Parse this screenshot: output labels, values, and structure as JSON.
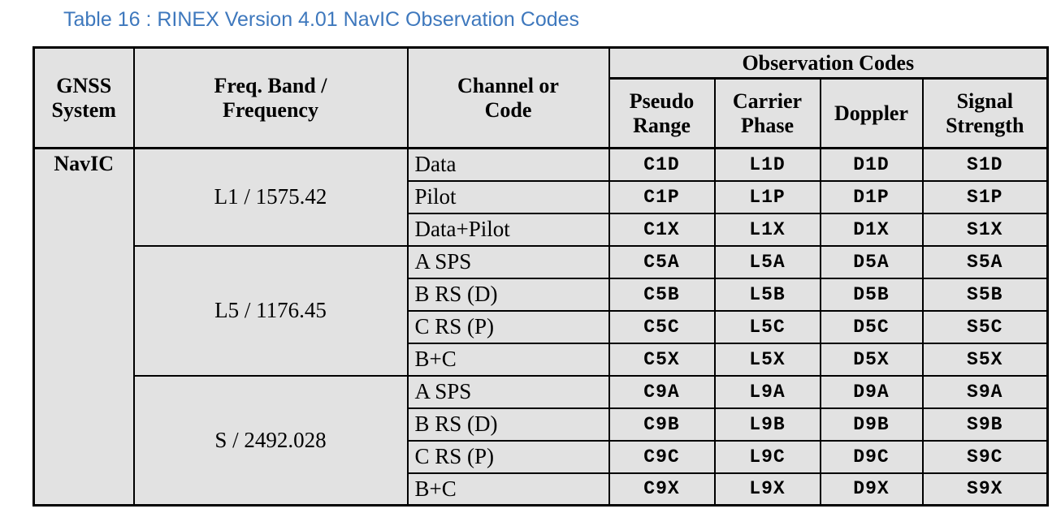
{
  "title": "Table 16 : RINEX Version 4.01 NavIC Observation Codes",
  "colors": {
    "title_text": "#3e78bd",
    "cell_background": "#e2e2e2",
    "border": "#000000",
    "page_background": "#ffffff"
  },
  "table": {
    "headers": {
      "gnss_system": "GNSS\nSystem",
      "freq_band": "Freq. Band /\nFrequency",
      "channel": "Channel or\nCode",
      "observation_codes": "Observation Codes",
      "pseudo_range": "Pseudo\nRange",
      "carrier_phase": "Carrier\nPhase",
      "doppler": "Doppler",
      "signal_strength": "Signal\nStrength"
    },
    "gnss_system": "NavIC",
    "bands": [
      {
        "freq": "L1 / 1575.42",
        "rows": [
          {
            "channel": "Data",
            "codes": [
              "C1D",
              "L1D",
              "D1D",
              "S1D"
            ]
          },
          {
            "channel": "Pilot",
            "codes": [
              "C1P",
              "L1P",
              "D1P",
              "S1P"
            ]
          },
          {
            "channel": "Data+Pilot",
            "codes": [
              "C1X",
              "L1X",
              "D1X",
              "S1X"
            ]
          }
        ]
      },
      {
        "freq": "L5 / 1176.45",
        "rows": [
          {
            "channel": "A SPS",
            "codes": [
              "C5A",
              "L5A",
              "D5A",
              "S5A"
            ]
          },
          {
            "channel": "B RS (D)",
            "codes": [
              "C5B",
              "L5B",
              "D5B",
              "S5B"
            ]
          },
          {
            "channel": "C RS (P)",
            "codes": [
              "C5C",
              "L5C",
              "D5C",
              "S5C"
            ]
          },
          {
            "channel": "B+C",
            "codes": [
              "C5X",
              "L5X",
              "D5X",
              "S5X"
            ]
          }
        ]
      },
      {
        "freq": "S / 2492.028",
        "rows": [
          {
            "channel": "A SPS",
            "codes": [
              "C9A",
              "L9A",
              "D9A",
              "S9A"
            ]
          },
          {
            "channel": "B RS (D)",
            "codes": [
              "C9B",
              "L9B",
              "D9B",
              "S9B"
            ]
          },
          {
            "channel": "C RS (P)",
            "codes": [
              "C9C",
              "L9C",
              "D9C",
              "S9C"
            ]
          },
          {
            "channel": "B+C",
            "codes": [
              "C9X",
              "L9X",
              "D9X",
              "S9X"
            ]
          }
        ]
      }
    ]
  }
}
